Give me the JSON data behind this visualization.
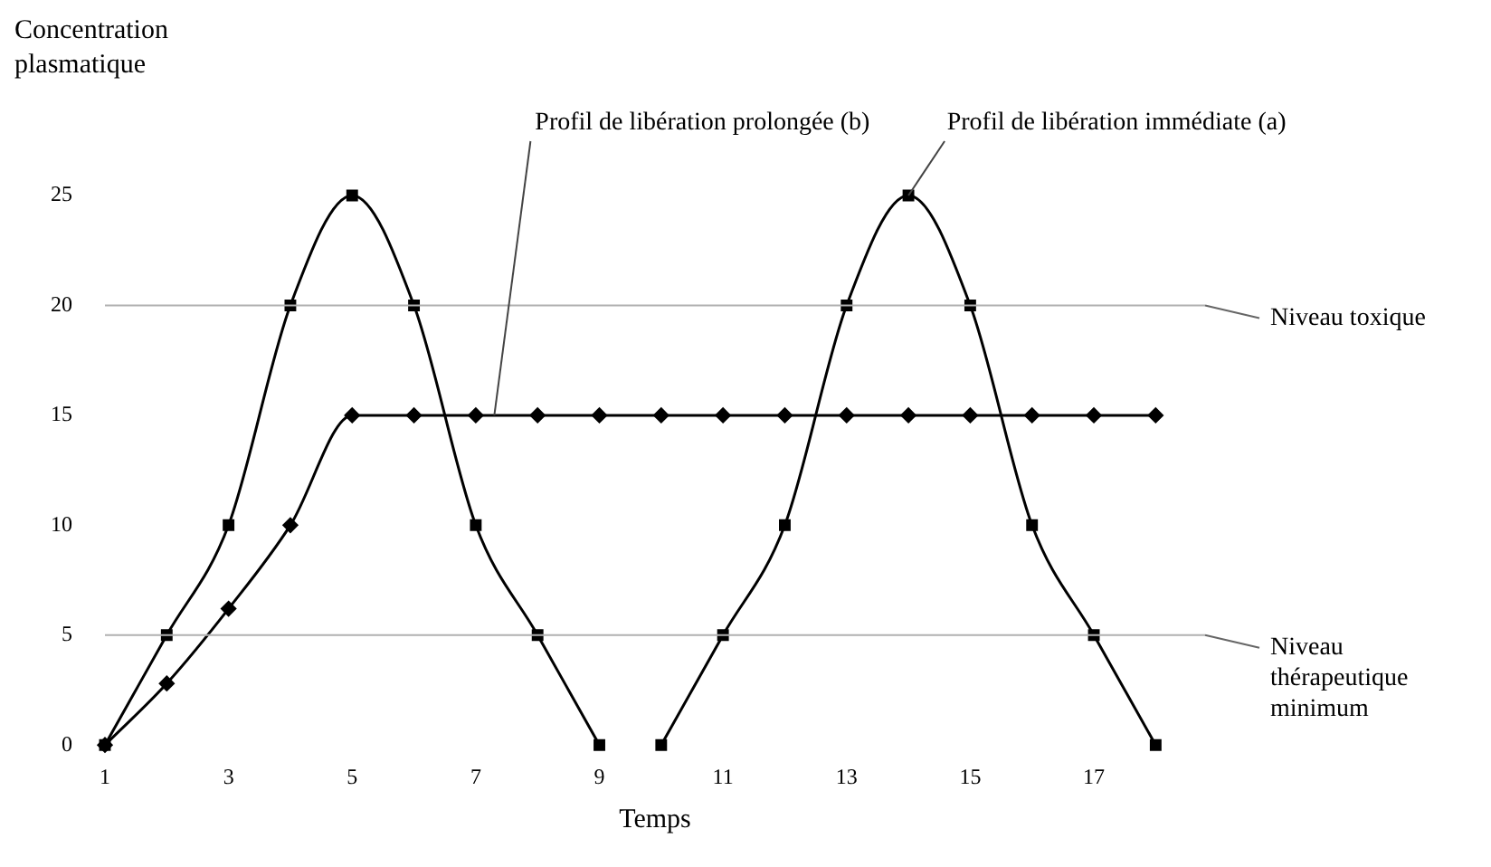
{
  "chart_data": {
    "type": "line",
    "xlabel": "Temps",
    "ylabel": "Concentration plasmatique",
    "xlim": [
      1,
      18.8
    ],
    "xticks": [
      1,
      3,
      5,
      7,
      9,
      11,
      13,
      15,
      17
    ],
    "ylim": [
      0,
      25
    ],
    "yticks": [
      0,
      5,
      10,
      15,
      20,
      25
    ],
    "grid": false,
    "legend": false,
    "line_style": "solid",
    "series": [
      {
        "color": "#000000",
        "marker": "square",
        "x": [
          1,
          2,
          3,
          4,
          5,
          6,
          7,
          8,
          9
        ],
        "values": [
          0,
          5,
          10,
          20,
          25,
          20,
          10,
          5,
          0
        ]
      },
      {
        "color": "#000000",
        "marker": "square",
        "x": [
          10,
          11,
          12,
          13,
          14,
          15,
          16,
          17,
          18
        ],
        "values": [
          0,
          5,
          10,
          20,
          25,
          20,
          10,
          5,
          0
        ]
      },
      {
        "color": "#000000",
        "marker": "diamond",
        "x": [
          1,
          2,
          3,
          4,
          5,
          6,
          7,
          8,
          9,
          10,
          11,
          12,
          13,
          14,
          15,
          16,
          17,
          18
        ],
        "values": [
          0,
          2.8,
          6.2,
          10,
          15,
          15,
          15,
          15,
          15,
          15,
          15,
          15,
          15,
          15,
          15,
          15,
          15,
          15
        ]
      }
    ],
    "ref_lines": [
      {
        "axis": "y",
        "value": 20,
        "label": "Niveau toxique",
        "color": "#b0b0b0"
      },
      {
        "axis": "y",
        "value": 5,
        "label": "Niveau thérapeutique minimum",
        "color": "#b0b0b0"
      }
    ],
    "annotations": [
      {
        "text": "Profil de libération prolongée (b)",
        "x": 7.3,
        "y": 15
      },
      {
        "text": "Profil de libération immédiate (a)",
        "x": 14,
        "y": 25
      }
    ]
  }
}
